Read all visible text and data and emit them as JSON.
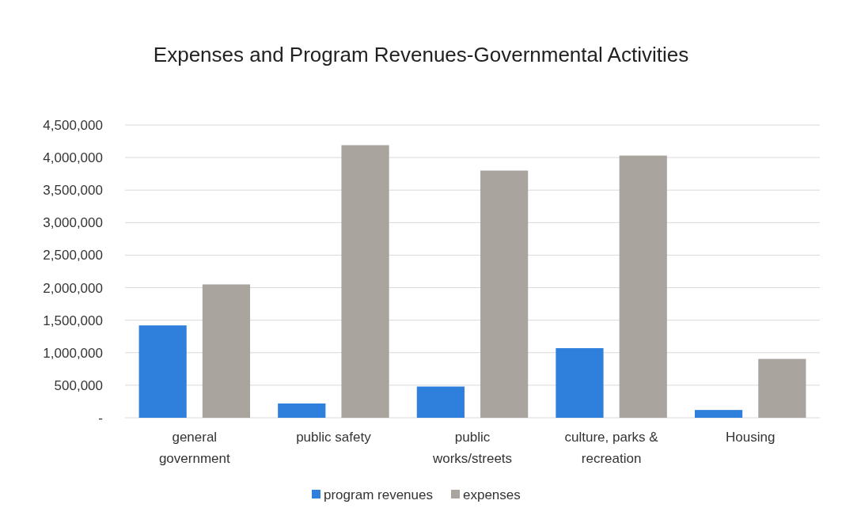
{
  "chart_data": {
    "type": "bar",
    "title": "Expenses and Program Revenues-Governmental Activities",
    "categories": [
      "general government",
      "public safety",
      "public works/streets",
      "culture, parks & recreation",
      "Housing"
    ],
    "series": [
      {
        "name": "program revenues",
        "color": "#2f80dc",
        "values": [
          1420000,
          220000,
          480000,
          1070000,
          120000
        ]
      },
      {
        "name": "expenses",
        "color": "#aaa49e",
        "values": [
          2050000,
          4190000,
          3800000,
          4030000,
          905000
        ]
      }
    ],
    "ylim": [
      0,
      4500000
    ],
    "yticks": [
      {
        "value": 0,
        "label": "-"
      },
      {
        "value": 500000,
        "label": "500,000"
      },
      {
        "value": 1000000,
        "label": "1,000,000"
      },
      {
        "value": 1500000,
        "label": "1,500,000"
      },
      {
        "value": 2000000,
        "label": "2,000,000"
      },
      {
        "value": 2500000,
        "label": "2,500,000"
      },
      {
        "value": 3000000,
        "label": "3,000,000"
      },
      {
        "value": 3500000,
        "label": "3,500,000"
      },
      {
        "value": 4000000,
        "label": "4,000,000"
      },
      {
        "value": 4500000,
        "label": "4,500,000"
      }
    ],
    "grid": "y",
    "legend": "bottom"
  }
}
